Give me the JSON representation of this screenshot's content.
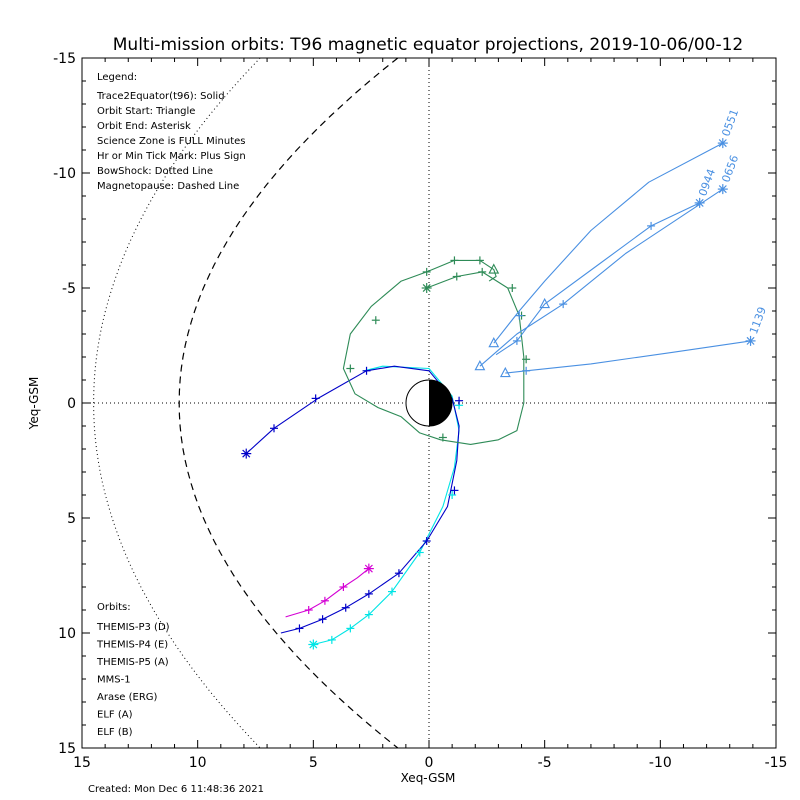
{
  "chart_data": {
    "type": "line",
    "title": "Multi-mission orbits: T96 magnetic equator projections, 2019-10-06/00-12",
    "xlabel": "Xeq-GSM",
    "ylabel": "Yeq-GSM",
    "xlim": [
      15,
      -15
    ],
    "ylim": [
      -15,
      15
    ],
    "xticks": [
      "15",
      "10",
      "5",
      "0",
      "-5",
      "-10",
      "-15"
    ],
    "yticks": [
      "-15",
      "-10",
      "-5",
      "0",
      "5",
      "10",
      "15"
    ],
    "created": "Created: Mon Dec  6 11:48:36 2021",
    "legend_title": "Legend:",
    "legend_lines": [
      "Trace2Equator(t96): Solid",
      "Orbit Start: Triangle",
      "Orbit End: Asterisk",
      "Science Zone is FULL Minutes",
      "Hr or Min Tick Mark: Plus Sign",
      "BowShock: Dotted Line",
      "Magnetopause: Dashed Line"
    ],
    "orbits_title": "Orbits:",
    "orbit_labels": [
      {
        "name": "THEMIS-P3 (D)",
        "color": "#00e5e5"
      },
      {
        "name": "THEMIS-P4 (E)",
        "color": "#0000c8"
      },
      {
        "name": "THEMIS-P5 (A)",
        "color": "#d400d4"
      },
      {
        "name": "MMS-1",
        "color": "#000000"
      },
      {
        "name": "Arase (ERG)",
        "color": "#2e8b57"
      },
      {
        "name": "ELF (A)",
        "color": "#4a90e2"
      },
      {
        "name": "ELF (B)",
        "color": "#e00000"
      }
    ],
    "series": [
      {
        "name": "THEMIS-P3 (D)",
        "color": "#00e5e5",
        "points": [
          [
            5.0,
            10.5
          ],
          [
            4.2,
            10.3
          ],
          [
            3.4,
            9.8
          ],
          [
            2.6,
            9.2
          ],
          [
            1.6,
            8.2
          ],
          [
            0.4,
            6.5
          ],
          [
            -0.6,
            4.5
          ],
          [
            -1.1,
            2.8
          ],
          [
            -1.3,
            1.2
          ],
          [
            -1.0,
            -0.3
          ],
          [
            0.0,
            -1.5
          ],
          [
            2.0,
            -1.6
          ],
          [
            2.8,
            -1.4
          ]
        ],
        "ticks": [
          [
            4.2,
            10.3
          ],
          [
            3.4,
            9.8
          ],
          [
            2.6,
            9.2
          ],
          [
            1.6,
            8.2
          ],
          [
            0.4,
            6.5
          ],
          [
            -1.0,
            4.0
          ],
          [
            -1.3,
            0.1
          ]
        ],
        "end": [
          5.0,
          10.5
        ]
      },
      {
        "name": "THEMIS-P4 (E)",
        "color": "#0000c8",
        "points": [
          [
            6.4,
            10.0
          ],
          [
            5.6,
            9.8
          ],
          [
            4.6,
            9.4
          ],
          [
            3.6,
            8.9
          ],
          [
            2.6,
            8.3
          ],
          [
            1.3,
            7.4
          ],
          [
            0.1,
            6.0
          ],
          [
            -0.8,
            4.5
          ],
          [
            -1.2,
            2.5
          ],
          [
            -1.3,
            1.0
          ],
          [
            -1.0,
            -0.2
          ],
          [
            0.0,
            -1.4
          ],
          [
            1.5,
            -1.6
          ],
          [
            2.7,
            -1.4
          ],
          [
            4.8,
            -0.2
          ],
          [
            6.7,
            1.1
          ],
          [
            7.9,
            2.2
          ]
        ],
        "ticks": [
          [
            5.6,
            9.8
          ],
          [
            4.6,
            9.4
          ],
          [
            3.6,
            8.9
          ],
          [
            2.6,
            8.3
          ],
          [
            1.3,
            7.4
          ],
          [
            0.1,
            6.0
          ],
          [
            -1.1,
            3.8
          ],
          [
            -1.3,
            -0.1
          ],
          [
            2.7,
            -1.4
          ],
          [
            4.9,
            -0.2
          ],
          [
            6.7,
            1.1
          ]
        ],
        "end": [
          7.9,
          2.2
        ]
      },
      {
        "name": "THEMIS-P5 (A)",
        "color": "#d400d4",
        "points": [
          [
            6.2,
            9.3
          ],
          [
            5.2,
            9.0
          ],
          [
            4.5,
            8.6
          ],
          [
            3.7,
            8.0
          ],
          [
            3.1,
            7.6
          ],
          [
            2.6,
            7.2
          ]
        ],
        "ticks": [
          [
            5.2,
            9.0
          ],
          [
            4.5,
            8.6
          ],
          [
            3.7,
            8.0
          ]
        ],
        "end": [
          2.6,
          7.2
        ]
      },
      {
        "name": "Arase (ERG)",
        "color": "#2e8b57",
        "points": [
          [
            0.1,
            -5.0
          ],
          [
            -1.2,
            -5.5
          ],
          [
            -2.3,
            -5.7
          ],
          [
            -3.4,
            -5.0
          ],
          [
            -3.9,
            -3.8
          ],
          [
            -4.1,
            -2.0
          ],
          [
            -4.1,
            0.0
          ],
          [
            -3.8,
            1.2
          ],
          [
            -3.0,
            1.6
          ],
          [
            -1.8,
            1.8
          ],
          [
            -0.5,
            1.6
          ],
          [
            0.4,
            1.3
          ],
          [
            1.2,
            0.6
          ],
          [
            2.2,
            0.2
          ],
          [
            3.2,
            -0.4
          ],
          [
            3.7,
            -1.5
          ],
          [
            3.4,
            -3.0
          ],
          [
            2.5,
            -4.2
          ],
          [
            1.2,
            -5.3
          ],
          [
            0.1,
            -5.7
          ],
          [
            -1.1,
            -6.2
          ],
          [
            -2.2,
            -6.2
          ],
          [
            -2.8,
            -5.8
          ],
          [
            -2.9,
            -5.5
          ],
          [
            -2.6,
            -5.3
          ]
        ],
        "ticks": [
          [
            -1.2,
            -5.5
          ],
          [
            -2.3,
            -5.7
          ],
          [
            -3.6,
            -5.0
          ],
          [
            -4.0,
            -3.8
          ],
          [
            -4.2,
            -1.9
          ],
          [
            -0.6,
            1.5
          ],
          [
            3.4,
            -1.5
          ],
          [
            2.3,
            -3.6
          ],
          [
            0.1,
            -5.7
          ],
          [
            -1.1,
            -6.2
          ],
          [
            -2.2,
            -6.2
          ]
        ],
        "start": [
          -2.8,
          -5.8
        ],
        "end": [
          0.1,
          -5.0
        ]
      },
      {
        "name": "ELF (A)",
        "color": "#4a90e2",
        "tracks": [
          {
            "points": [
              [
                -2.8,
                -2.6
              ],
              [
                -3.9,
                -4.0
              ],
              [
                -5.0,
                -5.3
              ],
              [
                -7.0,
                -7.5
              ],
              [
                -9.5,
                -9.6
              ],
              [
                -12.7,
                -11.3
              ]
            ],
            "start": [
              -2.8,
              -2.6
            ],
            "end": [
              -12.7,
              -11.3
            ],
            "ticks": [
              [
                -3.9,
                -3.8
              ]
            ],
            "label": "0551"
          },
          {
            "points": [
              [
                -2.9,
                -2.1
              ],
              [
                -3.8,
                -2.7
              ],
              [
                -5.0,
                -4.3
              ],
              [
                -7.3,
                -6.0
              ],
              [
                -9.6,
                -7.7
              ],
              [
                -11.7,
                -8.7
              ]
            ],
            "start": [
              -5.0,
              -4.3
            ],
            "end": [
              -11.7,
              -8.7
            ],
            "ticks": [
              [
                -3.8,
                -2.7
              ],
              [
                -9.6,
                -7.7
              ]
            ],
            "label": "0944"
          },
          {
            "points": [
              [
                -2.2,
                -1.6
              ],
              [
                -3.8,
                -3.0
              ],
              [
                -5.8,
                -4.3
              ],
              [
                -8.5,
                -6.5
              ],
              [
                -12.7,
                -9.3
              ]
            ],
            "start": [
              -2.2,
              -1.6
            ],
            "end": [
              -12.7,
              -9.3
            ],
            "ticks": [
              [
                -5.8,
                -4.3
              ]
            ],
            "label": "0656"
          },
          {
            "points": [
              [
                -3.3,
                -1.3
              ],
              [
                -4.2,
                -1.4
              ],
              [
                -7.0,
                -1.7
              ],
              [
                -10.5,
                -2.2
              ],
              [
                -13.9,
                -2.7
              ]
            ],
            "start": [
              -3.3,
              -1.3
            ],
            "end": [
              -13.9,
              -2.7
            ],
            "ticks": [
              [
                -4.2,
                -1.4
              ]
            ],
            "label": "1139"
          }
        ]
      }
    ],
    "magnetopause": "dashed",
    "bowshock": "dotted",
    "grid": "dotted zero lines"
  }
}
